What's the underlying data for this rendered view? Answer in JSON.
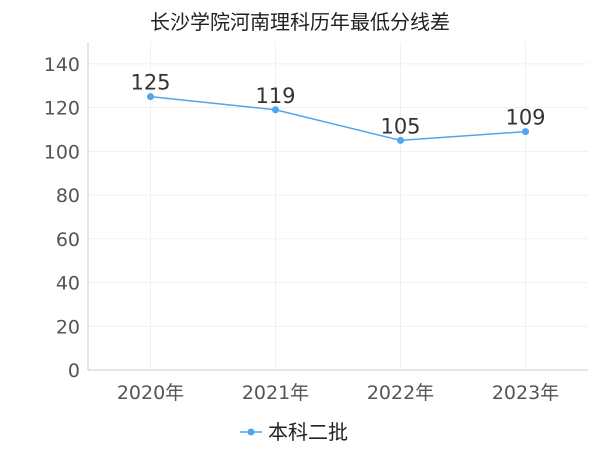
{
  "chart_data": {
    "type": "line",
    "title": "长沙学院河南理科历年最低分线差",
    "categories": [
      "2020年",
      "2021年",
      "2022年",
      "2023年"
    ],
    "series": [
      {
        "name": "本科二批",
        "values": [
          125,
          119,
          105,
          109
        ],
        "color": "#4da6ef"
      }
    ],
    "ylim": [
      0,
      150
    ],
    "yticks": [
      0,
      20,
      40,
      60,
      80,
      100,
      120,
      140
    ],
    "grid": true,
    "legend": "bottom-center"
  }
}
